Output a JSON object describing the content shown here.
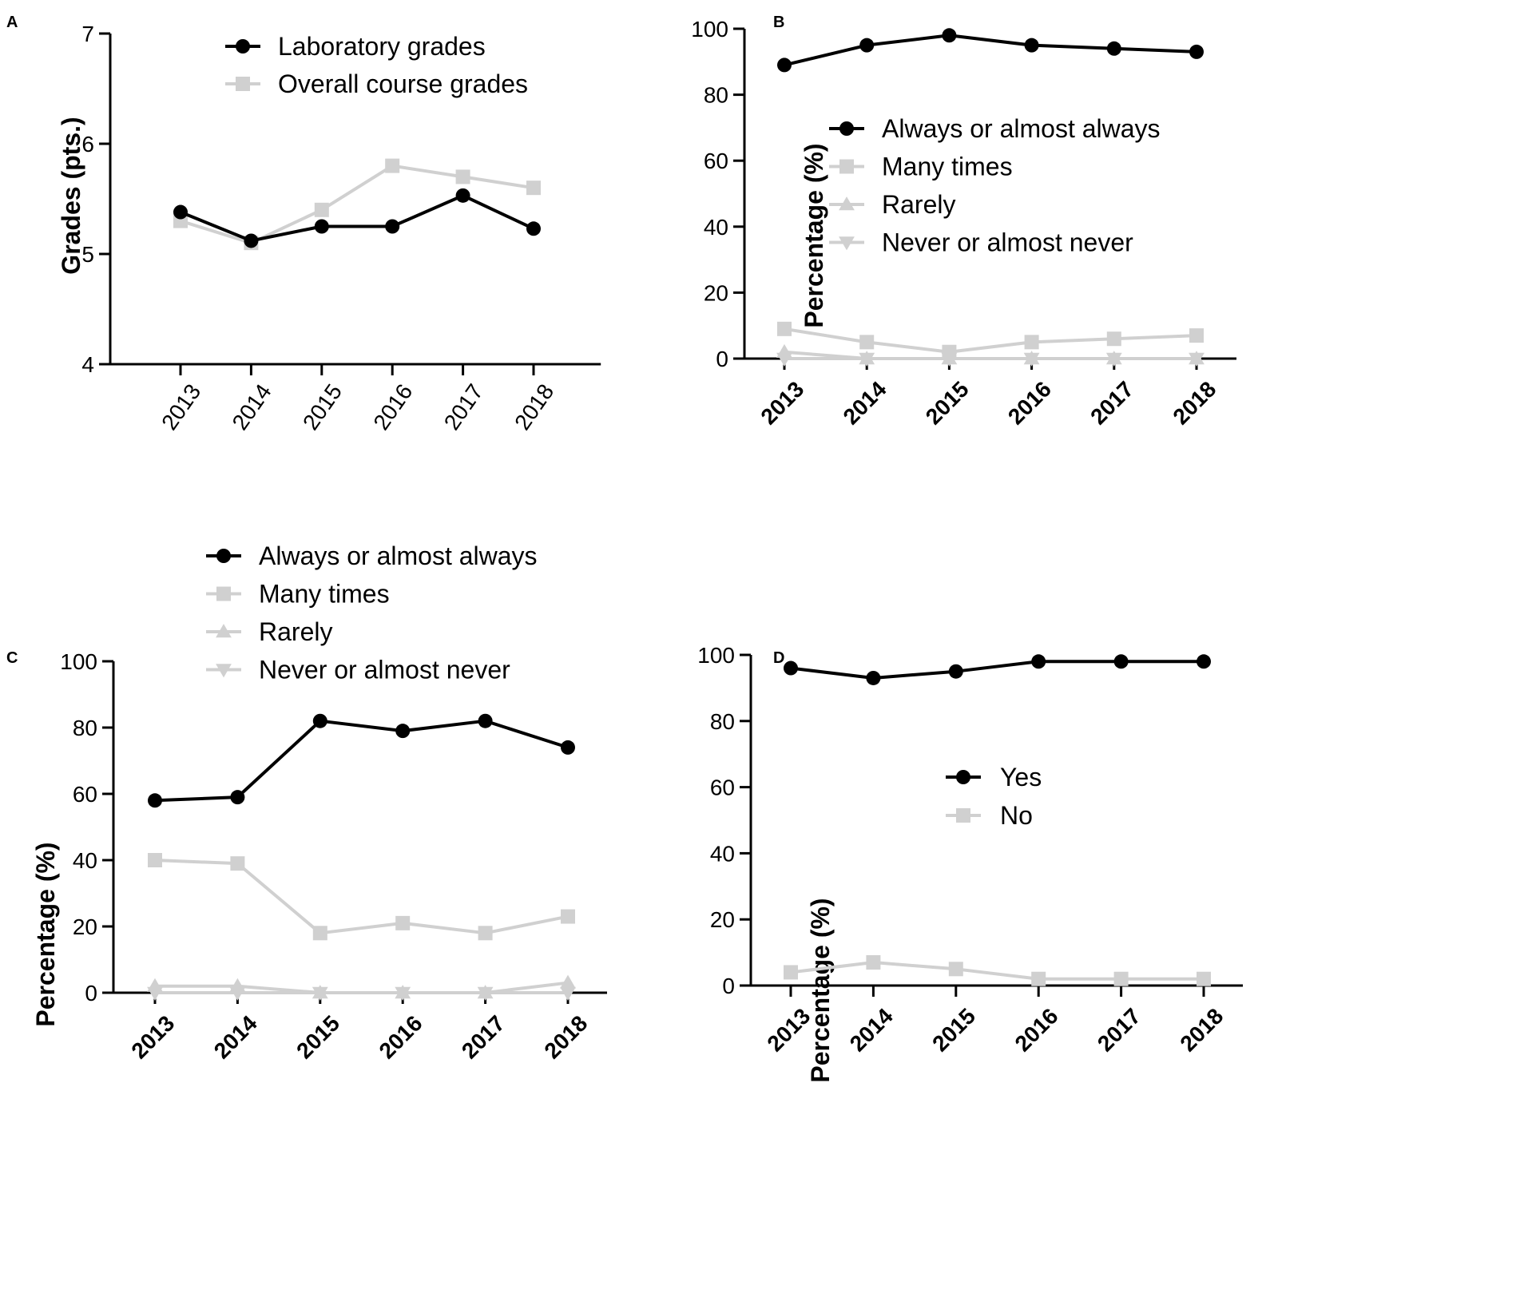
{
  "figure": {
    "background": "#ffffff"
  },
  "colors": {
    "black": "#000000",
    "gray": "#d0d0d0"
  },
  "chart_data": [
    {
      "panel": "A",
      "type": "line",
      "title": "",
      "xlabel": "",
      "ylabel": "Grades  (pts.)",
      "ylim": [
        4,
        7
      ],
      "yticks": [
        "4",
        "5",
        "6",
        "7"
      ],
      "categories": [
        "2013",
        "2014",
        "2015",
        "2016",
        "2017",
        "2018"
      ],
      "xtick_style": "plain",
      "legend_position": "top-center",
      "series": [
        {
          "name": "Laboratory grades",
          "values": [
            5.38,
            5.12,
            5.25,
            5.25,
            5.53,
            5.23
          ],
          "color": "#000000",
          "marker": "circle"
        },
        {
          "name": "Overall course grades",
          "values": [
            5.3,
            5.1,
            5.4,
            5.8,
            5.7,
            5.6
          ],
          "color": "#d0d0d0",
          "marker": "square"
        }
      ]
    },
    {
      "panel": "B",
      "type": "line",
      "title": "",
      "xlabel": "",
      "ylabel": "Percentage  (%)",
      "ylim": [
        0,
        100
      ],
      "yticks": [
        "0",
        "20",
        "40",
        "60",
        "80",
        "100"
      ],
      "categories": [
        "2013",
        "2014",
        "2015",
        "2016",
        "2017",
        "2018"
      ],
      "xtick_style": "bold",
      "legend_position": "center",
      "series": [
        {
          "name": "Always or almost always",
          "values": [
            89,
            95,
            98,
            95,
            94,
            93
          ],
          "color": "#000000",
          "marker": "circle"
        },
        {
          "name": "Many times",
          "values": [
            9,
            5,
            2,
            5,
            6,
            7
          ],
          "color": "#d0d0d0",
          "marker": "square"
        },
        {
          "name": "Rarely",
          "values": [
            2,
            0,
            0,
            0,
            0,
            0
          ],
          "color": "#d0d0d0",
          "marker": "triangle-up"
        },
        {
          "name": "Never or almost never",
          "values": [
            0,
            0,
            0,
            0,
            0,
            0
          ],
          "color": "#d0d0d0",
          "marker": "triangle-down"
        }
      ]
    },
    {
      "panel": "C",
      "type": "line",
      "title": "",
      "xlabel": "",
      "ylabel": "Percentage  (%)",
      "ylim": [
        0,
        100
      ],
      "yticks": [
        "0",
        "20",
        "40",
        "60",
        "80",
        "100"
      ],
      "categories": [
        "2013",
        "2014",
        "2015",
        "2016",
        "2017",
        "2018"
      ],
      "xtick_style": "bold",
      "legend_position": "above",
      "series": [
        {
          "name": "Always or almost always",
          "values": [
            58,
            59,
            82,
            79,
            82,
            74
          ],
          "color": "#000000",
          "marker": "circle"
        },
        {
          "name": "Many times",
          "values": [
            40,
            39,
            18,
            21,
            18,
            23
          ],
          "color": "#d0d0d0",
          "marker": "square"
        },
        {
          "name": "Rarely",
          "values": [
            2,
            2,
            0,
            0,
            0,
            3
          ],
          "color": "#d0d0d0",
          "marker": "triangle-up"
        },
        {
          "name": "Never or almost never",
          "values": [
            0,
            0,
            0,
            0,
            0,
            0
          ],
          "color": "#d0d0d0",
          "marker": "triangle-down"
        }
      ]
    },
    {
      "panel": "D",
      "type": "line",
      "title": "",
      "xlabel": "",
      "ylabel": "Percentage  (%)",
      "ylim": [
        0,
        100
      ],
      "yticks": [
        "0",
        "20",
        "40",
        "60",
        "80",
        "100"
      ],
      "categories": [
        "2013",
        "2014",
        "2015",
        "2016",
        "2017",
        "2018"
      ],
      "xtick_style": "bold",
      "legend_position": "center",
      "series": [
        {
          "name": "Yes",
          "values": [
            96,
            93,
            95,
            98,
            98,
            98
          ],
          "color": "#000000",
          "marker": "circle"
        },
        {
          "name": "No",
          "values": [
            4,
            7,
            5,
            2,
            2,
            2
          ],
          "color": "#d0d0d0",
          "marker": "square"
        }
      ]
    }
  ]
}
